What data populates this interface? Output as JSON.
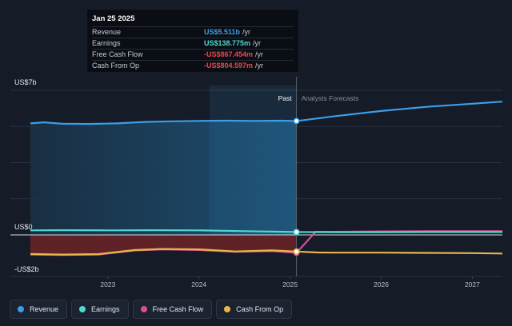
{
  "tooltip": {
    "date": "Jan 25 2025",
    "rows": [
      {
        "label": "Revenue",
        "value": "US$5.511b",
        "unit": "/yr",
        "color": "#3b9ee8"
      },
      {
        "label": "Earnings",
        "value": "US$138.775m",
        "unit": "/yr",
        "color": "#4fd9cf"
      },
      {
        "label": "Free Cash Flow",
        "value": "-US$867.454m",
        "unit": "/yr",
        "color": "#e8484d"
      },
      {
        "label": "Cash From Op",
        "value": "-US$804.597m",
        "unit": "/yr",
        "color": "#e8484d"
      }
    ]
  },
  "markers": {
    "past": "Past",
    "forecast": "Analysts Forecasts"
  },
  "legend": [
    {
      "label": "Revenue",
      "color": "#3b9ee8"
    },
    {
      "label": "Earnings",
      "color": "#4fd9cf"
    },
    {
      "label": "Free Cash Flow",
      "color": "#d94d96"
    },
    {
      "label": "Cash From Op",
      "color": "#e8b54a"
    }
  ],
  "chart_data": {
    "type": "line",
    "ylim": [
      -2,
      7
    ],
    "y_ticks": [
      {
        "value": 7,
        "label": "US$7b"
      },
      {
        "value": 0,
        "label": "US$0"
      },
      {
        "value": -2,
        "label": "-US$2b"
      }
    ],
    "xlim": [
      2022.15,
      2027.33
    ],
    "x_ticks": [
      2023,
      2024,
      2025,
      2026,
      2027
    ],
    "past_end": 2025.07,
    "series": [
      {
        "name": "Revenue",
        "color": "#3b9ee8",
        "x": [
          2022.15,
          2022.3,
          2022.5,
          2022.8,
          2023.1,
          2023.4,
          2023.7,
          2024.0,
          2024.3,
          2024.6,
          2024.9,
          2025.07,
          2025.5,
          2026.0,
          2026.5,
          2027.0,
          2027.33
        ],
        "y": [
          5.4,
          5.45,
          5.38,
          5.37,
          5.4,
          5.47,
          5.5,
          5.52,
          5.53,
          5.52,
          5.53,
          5.511,
          5.75,
          6.0,
          6.2,
          6.35,
          6.45
        ]
      },
      {
        "name": "Earnings",
        "color": "#4fd9cf",
        "x": [
          2022.15,
          2022.5,
          2023.0,
          2023.5,
          2024.0,
          2024.5,
          2025.07,
          2025.5,
          2026.0,
          2026.5,
          2027.0,
          2027.33
        ],
        "y": [
          0.22,
          0.23,
          0.22,
          0.23,
          0.22,
          0.18,
          0.139,
          0.13,
          0.13,
          0.14,
          0.14,
          0.14
        ]
      },
      {
        "name": "Free Cash Flow",
        "color": "#d94d96",
        "x": [
          2022.15,
          2022.5,
          2022.9,
          2023.3,
          2023.6,
          2024.0,
          2024.4,
          2024.8,
          2025.07,
          2025.28,
          2025.5,
          2026.0,
          2026.5,
          2027.0,
          2027.33
        ],
        "y": [
          -0.95,
          -0.97,
          -0.95,
          -0.75,
          -0.7,
          -0.73,
          -0.82,
          -0.78,
          -0.867,
          0.15,
          0.15,
          0.17,
          0.18,
          0.18,
          0.18
        ]
      },
      {
        "name": "Cash From Op",
        "color": "#e8b54a",
        "x": [
          2022.15,
          2022.5,
          2022.9,
          2023.3,
          2023.6,
          2024.0,
          2024.4,
          2024.8,
          2025.07,
          2025.3,
          2025.5,
          2026.0,
          2026.5,
          2027.0,
          2027.33
        ],
        "y": [
          -0.92,
          -0.95,
          -0.93,
          -0.73,
          -0.68,
          -0.7,
          -0.8,
          -0.75,
          -0.805,
          -0.85,
          -0.86,
          -0.86,
          -0.87,
          -0.88,
          -0.9
        ]
      }
    ]
  }
}
